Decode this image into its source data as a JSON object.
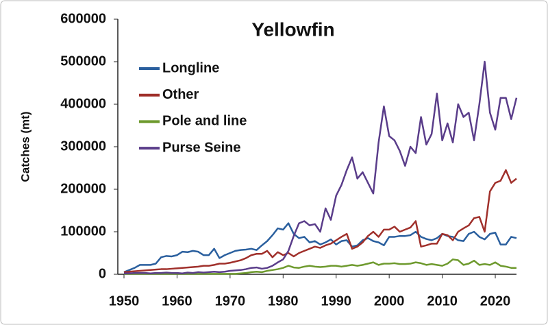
{
  "chart_data": {
    "type": "line",
    "title": "Yellowfin",
    "y_label": "Catches (mt)",
    "x": [
      1950,
      1951,
      1952,
      1953,
      1954,
      1955,
      1956,
      1957,
      1958,
      1959,
      1960,
      1961,
      1962,
      1963,
      1964,
      1965,
      1966,
      1967,
      1968,
      1969,
      1970,
      1971,
      1972,
      1973,
      1974,
      1975,
      1976,
      1977,
      1978,
      1979,
      1980,
      1981,
      1982,
      1983,
      1984,
      1985,
      1986,
      1987,
      1988,
      1989,
      1990,
      1991,
      1992,
      1993,
      1994,
      1995,
      1996,
      1997,
      1998,
      1999,
      2000,
      2001,
      2002,
      2003,
      2004,
      2005,
      2006,
      2007,
      2008,
      2009,
      2010,
      2011,
      2012,
      2013,
      2014,
      2015,
      2016,
      2017,
      2018,
      2019,
      2020,
      2021,
      2022,
      2023,
      2024
    ],
    "xlim": [
      1950,
      2024
    ],
    "xticks": [
      1950,
      1960,
      1970,
      1980,
      1990,
      2000,
      2010,
      2020
    ],
    "ylim": [
      0,
      600000
    ],
    "yticks": [
      0,
      100000,
      200000,
      300000,
      400000,
      500000,
      600000
    ],
    "legend": "top-left",
    "series": [
      {
        "name": "Longline",
        "color": "#2a5f9e",
        "values": [
          5000,
          10000,
          15000,
          22000,
          22000,
          22000,
          25000,
          40000,
          43000,
          42000,
          45000,
          53000,
          52000,
          55000,
          53000,
          45000,
          45000,
          60000,
          38000,
          45000,
          50000,
          55000,
          57000,
          58000,
          60000,
          57000,
          68000,
          78000,
          92000,
          108000,
          105000,
          120000,
          95000,
          85000,
          88000,
          75000,
          78000,
          70000,
          75000,
          82000,
          70000,
          78000,
          80000,
          65000,
          68000,
          80000,
          85000,
          78000,
          75000,
          68000,
          88000,
          88000,
          90000,
          90000,
          92000,
          100000,
          88000,
          83000,
          80000,
          85000,
          95000,
          90000,
          88000,
          80000,
          78000,
          95000,
          100000,
          88000,
          82000,
          95000,
          98000,
          70000,
          70000,
          88000,
          85000
        ]
      },
      {
        "name": "Other",
        "color": "#a0302b",
        "values": [
          5000,
          6000,
          7000,
          8000,
          9000,
          10000,
          11000,
          12000,
          12000,
          13000,
          14000,
          15000,
          16000,
          17000,
          18000,
          20000,
          20000,
          22000,
          25000,
          25000,
          27000,
          30000,
          33000,
          38000,
          45000,
          48000,
          48000,
          55000,
          40000,
          52000,
          45000,
          50000,
          42000,
          50000,
          55000,
          60000,
          65000,
          62000,
          68000,
          72000,
          80000,
          88000,
          95000,
          60000,
          65000,
          75000,
          90000,
          100000,
          88000,
          105000,
          105000,
          112000,
          100000,
          105000,
          110000,
          125000,
          65000,
          68000,
          72000,
          72000,
          95000,
          92000,
          80000,
          100000,
          108000,
          115000,
          132000,
          135000,
          100000,
          195000,
          215000,
          220000,
          245000,
          215000,
          225000
        ]
      },
      {
        "name": "Pole and line",
        "color": "#6e9a2e",
        "values": [
          1000,
          1000,
          1000,
          1000,
          1000,
          1000,
          1000,
          1000,
          1000,
          1000,
          1000,
          1000,
          1000,
          1000,
          1000,
          1000,
          1000,
          1000,
          1000,
          1000,
          1000,
          1000,
          2000,
          3000,
          5000,
          6000,
          5000,
          8000,
          10000,
          12000,
          15000,
          20000,
          16000,
          15000,
          18000,
          20000,
          18000,
          17000,
          18000,
          20000,
          20000,
          18000,
          20000,
          22000,
          20000,
          22000,
          25000,
          28000,
          22000,
          25000,
          25000,
          26000,
          24000,
          24000,
          25000,
          28000,
          26000,
          22000,
          24000,
          22000,
          20000,
          25000,
          35000,
          33000,
          22000,
          25000,
          32000,
          22000,
          24000,
          22000,
          28000,
          20000,
          18000,
          15000,
          15000
        ]
      },
      {
        "name": "Purse Seine",
        "color": "#5a3d8a",
        "values": [
          2000,
          2000,
          3000,
          3000,
          3000,
          2000,
          3000,
          3000,
          4000,
          3000,
          3000,
          2000,
          4000,
          3000,
          5000,
          4000,
          5000,
          6000,
          5000,
          6000,
          8000,
          9000,
          10000,
          12000,
          15000,
          16000,
          13000,
          15000,
          20000,
          28000,
          35000,
          55000,
          90000,
          120000,
          125000,
          115000,
          118000,
          100000,
          155000,
          128000,
          185000,
          210000,
          245000,
          275000,
          225000,
          240000,
          215000,
          190000,
          310000,
          395000,
          325000,
          315000,
          290000,
          255000,
          300000,
          285000,
          370000,
          305000,
          330000,
          425000,
          315000,
          355000,
          310000,
          400000,
          370000,
          380000,
          315000,
          400000,
          500000,
          380000,
          340000,
          415000,
          415000,
          365000,
          415000
        ]
      }
    ]
  }
}
